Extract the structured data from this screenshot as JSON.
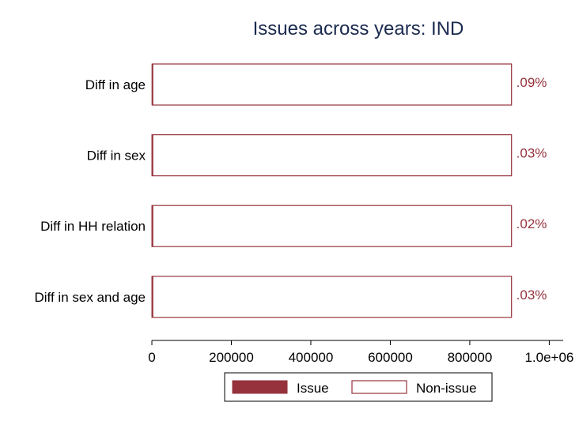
{
  "chart_data": {
    "type": "bar",
    "orientation": "horizontal",
    "stacked": true,
    "title": "Issues across years: IND",
    "xlabel": "",
    "ylabel": "",
    "categories": [
      "Diff in age",
      "Diff in sex",
      "Diff in HH relation",
      "Diff in sex and age"
    ],
    "series": [
      {
        "name": "Issue",
        "values": [
          815,
          270,
          180,
          270
        ],
        "color": "#96323c",
        "filled": true
      },
      {
        "name": "Non-issue",
        "values": [
          904185,
          904730,
          904820,
          904730
        ],
        "color": "#96323c",
        "filled": false
      }
    ],
    "data_labels": [
      ".09%",
      ".03%",
      ".02%",
      ".03%"
    ],
    "data_label_color": "#96323c",
    "xlim": [
      0,
      1035000
    ],
    "xticks": [
      0,
      200000,
      400000,
      600000,
      800000,
      1000000
    ],
    "xtick_labels": [
      "0",
      "200000",
      "400000",
      "600000",
      "800000",
      "1.0e+06"
    ],
    "grid": false,
    "legend_position": "bottom"
  }
}
